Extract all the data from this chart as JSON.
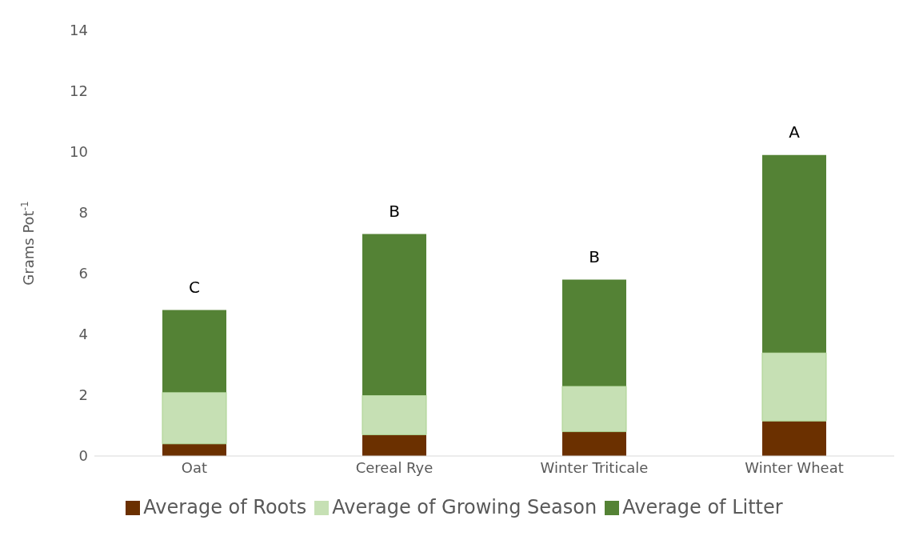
{
  "chart_data": {
    "type": "bar",
    "stacked": true,
    "ylabel": "Grams Pot$^{-1}$",
    "categories": [
      "Oat",
      "Cereal Rye",
      "Winter Triticale",
      "Winter Wheat"
    ],
    "series": [
      {
        "name": "Average of Roots",
        "color": "#6b3000",
        "values": [
          0.4,
          0.7,
          0.8,
          1.15
        ]
      },
      {
        "name": "Average of Growing Season",
        "color": "#c6e0b4",
        "values": [
          1.7,
          1.3,
          1.5,
          2.25
        ]
      },
      {
        "name": "Average of Litter",
        "color": "#548235",
        "values": [
          2.7,
          5.3,
          3.5,
          6.5
        ]
      }
    ],
    "ylim": [
      0,
      14
    ],
    "yticks": [
      0,
      2,
      4,
      6,
      8,
      10,
      12,
      14
    ],
    "grid": false,
    "legend": "bottom",
    "annotations": [
      {
        "text": "C",
        "x": "Oat",
        "y": 4.8
      },
      {
        "text": "B",
        "x": "Cereal Rye",
        "y": 7.3
      },
      {
        "text": "B",
        "x": "Winter Triticale",
        "y": 5.8
      },
      {
        "text": "A",
        "x": "Winter Wheat",
        "y": 9.9
      }
    ]
  }
}
